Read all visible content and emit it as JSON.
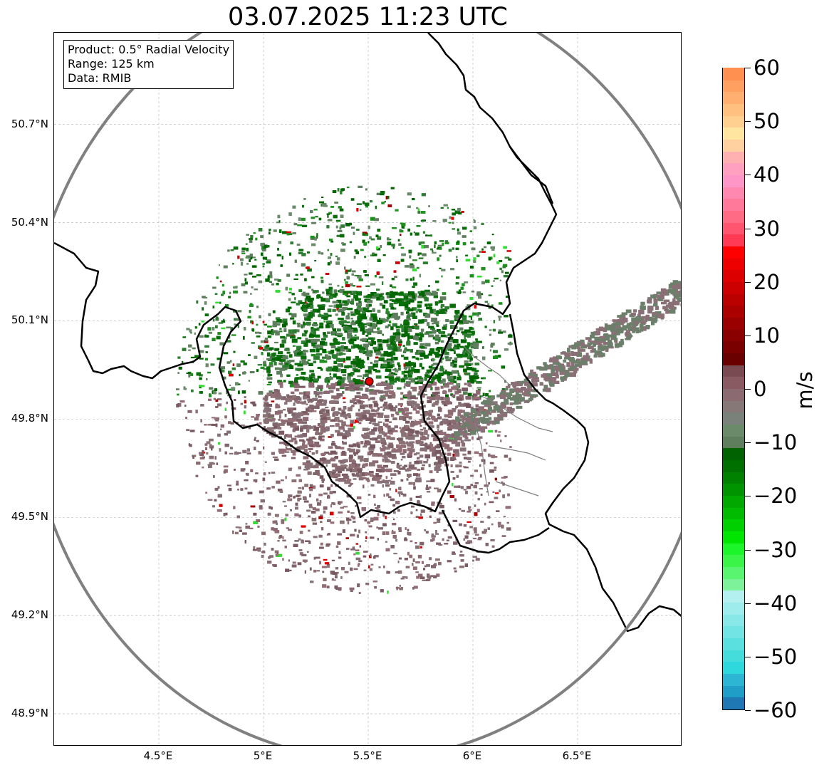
{
  "title": "03.07.2025 11:23 UTC",
  "info_box": {
    "product": "Product: 0.5° Radial Velocity",
    "range": "Range: 125 km",
    "data": "Data: RMIB"
  },
  "map": {
    "lon_range": [
      4.0,
      7.0
    ],
    "lat_range": [
      48.8,
      50.98
    ],
    "lat_ticks": [
      "50.7°N",
      "50.4°N",
      "50.1°N",
      "49.8°N",
      "49.5°N",
      "49.2°N",
      "48.9°N"
    ],
    "lat_values": [
      50.7,
      50.4,
      50.1,
      49.8,
      49.5,
      49.2,
      48.9
    ],
    "lon_ticks": [
      "4.5°E",
      "5°E",
      "5.5°E",
      "6°E",
      "6.5°E"
    ],
    "lon_values": [
      4.5,
      5.0,
      5.5,
      6.0,
      6.5
    ],
    "radar_site": {
      "lon": 5.505,
      "lat": 49.915
    },
    "range_ring_color": "#808080",
    "border_color": "#000000",
    "gridlines": true
  },
  "colorbar": {
    "unit": "m/s",
    "min": -60,
    "max": 60,
    "tick_labels": [
      "60",
      "50",
      "40",
      "30",
      "20",
      "10",
      "0",
      "−10",
      "−20",
      "−30",
      "−40",
      "−50",
      "−60"
    ],
    "tick_values": [
      60,
      50,
      40,
      30,
      20,
      10,
      0,
      -10,
      -20,
      -30,
      -40,
      -50,
      -60
    ],
    "colors": [
      "#1f77b4",
      "#1f9fc8",
      "#2cb6d4",
      "#2fd8dc",
      "#45dcdc",
      "#5be0e0",
      "#72e4e4",
      "#88e8e8",
      "#9eecec",
      "#b4f0f0",
      "#7ef29a",
      "#5af570",
      "#3af548",
      "#1cf52a",
      "#00e600",
      "#00d000",
      "#00bb00",
      "#00a800",
      "#009400",
      "#008200",
      "#007000",
      "#006200",
      "#5e7e5e",
      "#6a8a6a",
      "#7a807a",
      "#877878",
      "#8b6a72",
      "#8a5a62",
      "#7a4a52",
      "#6a0000",
      "#7a0000",
      "#8a0000",
      "#9a0000",
      "#ab0000",
      "#bb0000",
      "#cc0000",
      "#dd0000",
      "#ee0000",
      "#ff0000",
      "#ff3a55",
      "#ff5570",
      "#ff6a85",
      "#ff7a9a",
      "#ff88b0",
      "#ff96c8",
      "#ffa0c0",
      "#ffb0b0",
      "#ffd0a0",
      "#ffe5a0",
      "#ffd090",
      "#ffc080",
      "#ffb070",
      "#ffa060",
      "#ff9050"
    ]
  }
}
